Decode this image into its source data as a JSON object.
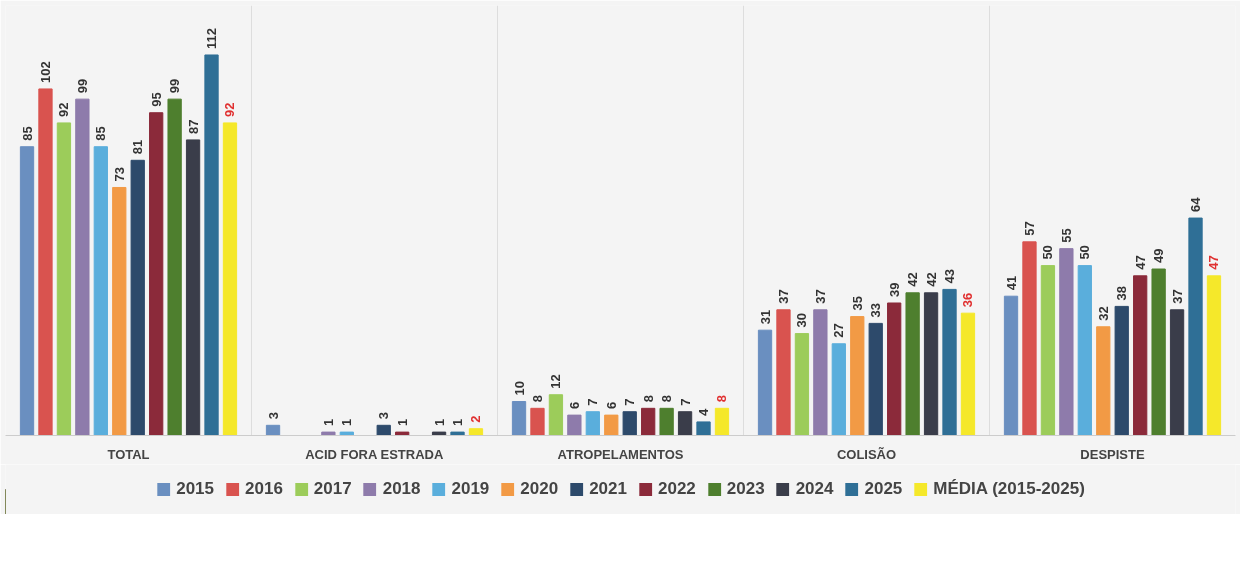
{
  "chart_data": {
    "type": "bar",
    "categories": [
      "TOTAL",
      "ACID FORA ESTRADA",
      "ATROPELAMENTOS",
      "COLISÃO",
      "DESPISTE"
    ],
    "series": [
      {
        "name": "2015",
        "color": "#6a8fc0",
        "values": [
          85,
          3,
          10,
          31,
          41
        ]
      },
      {
        "name": "2016",
        "color": "#d9534f",
        "values": [
          102,
          null,
          8,
          37,
          57
        ]
      },
      {
        "name": "2017",
        "color": "#9ccc5a",
        "values": [
          92,
          null,
          12,
          30,
          50
        ]
      },
      {
        "name": "2018",
        "color": "#8e7bab",
        "values": [
          99,
          1,
          6,
          37,
          55
        ]
      },
      {
        "name": "2019",
        "color": "#5aaedc",
        "values": [
          85,
          1,
          7,
          27,
          50
        ]
      },
      {
        "name": "2020",
        "color": "#f29a45",
        "values": [
          73,
          null,
          6,
          35,
          32
        ]
      },
      {
        "name": "2021",
        "color": "#2d4a6b",
        "values": [
          81,
          3,
          7,
          33,
          38
        ]
      },
      {
        "name": "2022",
        "color": "#8b2a3a",
        "values": [
          95,
          1,
          8,
          39,
          47
        ]
      },
      {
        "name": "2023",
        "color": "#4e7f2e",
        "values": [
          99,
          null,
          8,
          42,
          49
        ]
      },
      {
        "name": "2024",
        "color": "#3a3d4a",
        "values": [
          87,
          1,
          7,
          42,
          37
        ]
      },
      {
        "name": "2025",
        "color": "#2f6f96",
        "values": [
          112,
          1,
          4,
          43,
          64
        ]
      },
      {
        "name": "MÉDIA (2015-2025)",
        "color": "#f5e82a",
        "values": [
          92,
          2,
          8,
          36,
          47
        ]
      }
    ],
    "data_labels": true,
    "legend": "bottom",
    "grid": false
  }
}
